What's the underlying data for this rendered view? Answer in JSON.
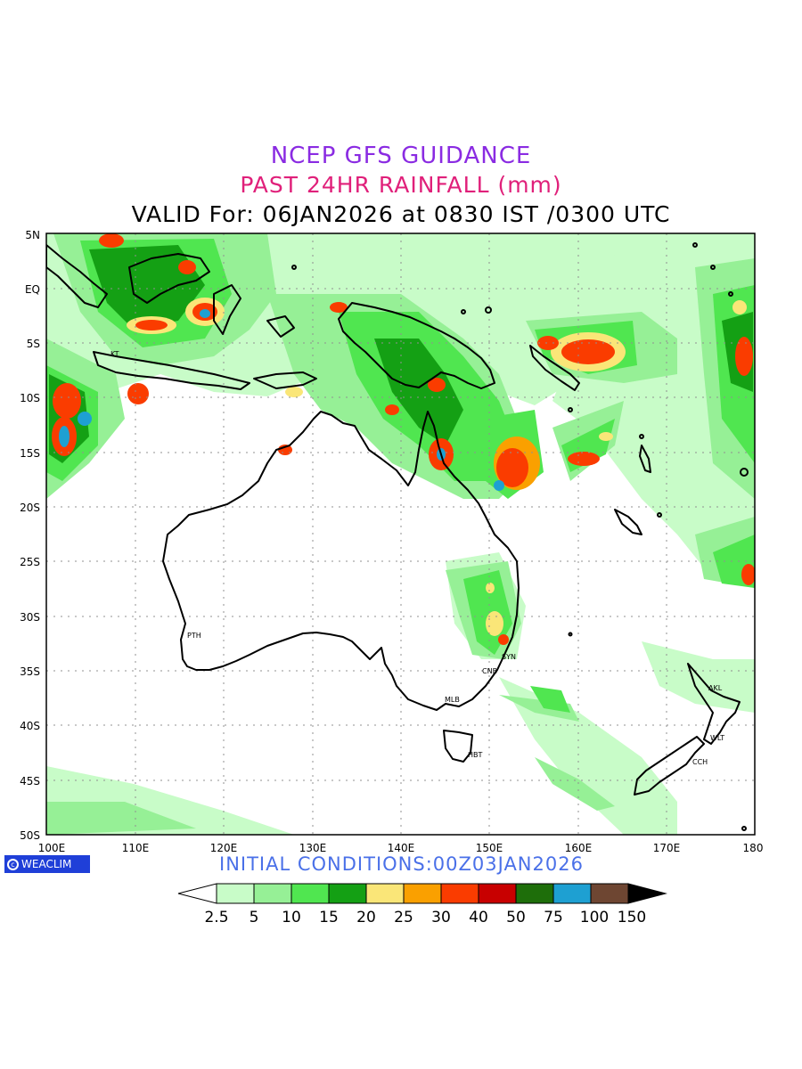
{
  "titles": {
    "line1": "NCEP GFS GUIDANCE",
    "line2": "PAST 24HR RAINFALL (mm)",
    "line3": "VALID For: 06JAN2026 at 0830 IST /0300 UTC"
  },
  "axes": {
    "lat_labels": [
      "5N",
      "EQ",
      "5S",
      "10S",
      "15S",
      "20S",
      "25S",
      "30S",
      "35S",
      "40S",
      "45S",
      "50S"
    ],
    "lon_labels": [
      "100E",
      "110E",
      "120E",
      "130E",
      "140E",
      "150E",
      "160E",
      "170E",
      "180"
    ]
  },
  "cities": [
    "KT",
    "PTH",
    "SYN",
    "CNB",
    "MLB",
    "HBT",
    "AKL",
    "WLT",
    "CCH"
  ],
  "logo": {
    "text": "WEACLIM"
  },
  "init_conditions": "INITIAL  CONDITIONS:00Z03JAN2026",
  "colorbar": {
    "labels": [
      "2.5",
      "5",
      "10",
      "15",
      "20",
      "25",
      "30",
      "40",
      "50",
      "75",
      "100",
      "150"
    ],
    "colors": [
      "#c8fcc8",
      "#96f096",
      "#50e650",
      "#14a014",
      "#fae678",
      "#faa000",
      "#fa3c00",
      "#c80000",
      "#1e6e0a",
      "#1ea0d2",
      "#6e4632"
    ]
  },
  "colors": {
    "title1": "#8a2be2",
    "title2": "#e0207a",
    "init": "#4a70e8",
    "logo": "#1f3fd8"
  }
}
